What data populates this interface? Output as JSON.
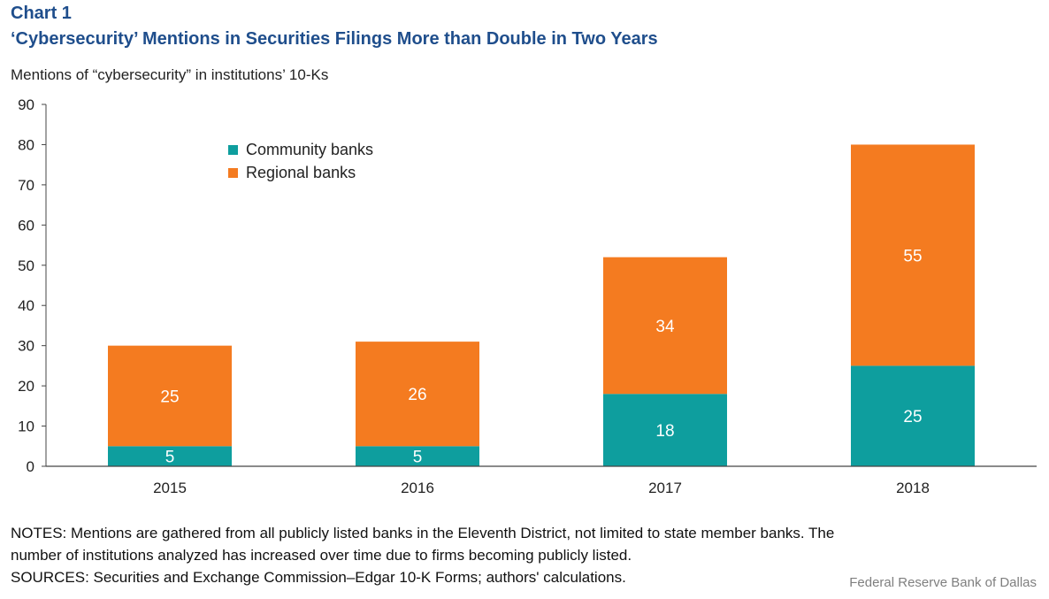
{
  "header": {
    "chart_number": "Chart 1",
    "title": "‘Cybersecurity’ Mentions in Securities Filings More than Double in Two Years"
  },
  "chart_data": {
    "type": "bar",
    "stacked": true,
    "categories": [
      "2015",
      "2016",
      "2017",
      "2018"
    ],
    "series": [
      {
        "name": "Community banks",
        "values": [
          5,
          5,
          18,
          25
        ],
        "color": "#0e9e9e"
      },
      {
        "name": "Regional banks",
        "values": [
          25,
          26,
          34,
          55
        ],
        "color": "#f47b20"
      }
    ],
    "ylabel": "Mentions of “cybersecurity” in institutions’ 10-Ks",
    "xlabel": "",
    "ylim": [
      0,
      90
    ],
    "yticks": [
      0,
      10,
      20,
      30,
      40,
      50,
      60,
      70,
      80,
      90
    ],
    "grid": false,
    "legend_position": "top-left",
    "data_labels": true
  },
  "footer": {
    "notes_line1": "NOTES: Mentions are gathered from all publicly listed banks in the Eleventh District, not limited to state member banks. The",
    "notes_line2": "number of institutions analyzed has increased over time due to firms becoming publicly listed.",
    "sources": "SOURCES: Securities and Exchange Commission–Edgar 10-K Forms; authors' calculations.",
    "credit": "Federal Reserve Bank of Dallas"
  }
}
